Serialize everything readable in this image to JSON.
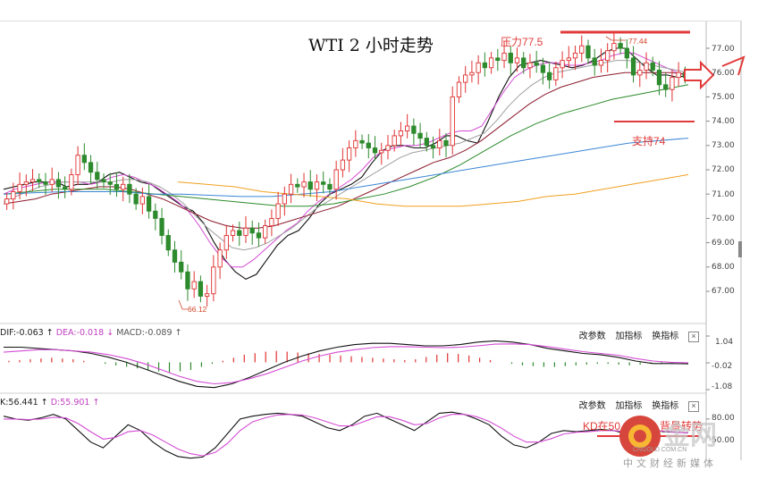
{
  "title": "WTI 2 小时走势",
  "colors": {
    "up": "#e03131",
    "down": "#2d8a2d",
    "ma_black": "#111111",
    "ma_magenta": "#d44bd4",
    "ma_gray": "#a0a0a0",
    "ma_maroon": "#8b1a2c",
    "ma_green": "#2a8a2a",
    "ma_blue": "#3b86d6",
    "ma_orange": "#f0a020",
    "annotation": "#e23a3a",
    "watermark": "#d7463c"
  },
  "annotations": {
    "resistance": "压力77.5",
    "support": "支持74",
    "high": "77.44",
    "low": "66.12",
    "kd_note": "KD在50",
    "kd_note_cut": "背景转势"
  },
  "macd": {
    "dif": "DIF:-0.063",
    "dea": "DEA:-0.018",
    "macd": "MACD:-0.089",
    "buttons": [
      "改参数",
      "加指标",
      "换指标"
    ],
    "close": "×"
  },
  "kd": {
    "k": "K:56.441",
    "d": "D:55.901",
    "buttons": [
      "改参数",
      "加指标",
      "换指标"
    ],
    "close": "×"
  },
  "watermark": {
    "logo_text": "金网",
    "url": "CNGOLD.COM.CN",
    "text": "中文财经新媒体"
  },
  "chart_data": {
    "type": "candlestick",
    "title": "WTI 2 小时走势",
    "ylim": [
      66.0,
      77.5
    ],
    "y_ticks": [
      "77.00",
      "76.00",
      "75.00",
      "74.00",
      "73.00",
      "72.00",
      "71.00",
      "70.00",
      "69.00",
      "68.00",
      "67.00"
    ],
    "levels": {
      "resistance": 77.5,
      "support": 74.0
    },
    "marked_high": 77.44,
    "marked_low": 66.12,
    "closes": [
      70.8,
      71.1,
      71.4,
      71.5,
      71.6,
      71.5,
      71.4,
      71.6,
      71.3,
      71.2,
      71.8,
      72.6,
      72.3,
      71.9,
      71.6,
      71.5,
      71.4,
      71.2,
      71.4,
      71.0,
      70.6,
      70.9,
      70.3,
      70.0,
      69.3,
      68.7,
      68.2,
      67.8,
      67.1,
      67.4,
      66.8,
      66.9,
      68.0,
      68.7,
      69.3,
      69.5,
      69.3,
      69.6,
      69.4,
      69.2,
      69.7,
      70.0,
      70.6,
      71.0,
      71.4,
      71.3,
      71.5,
      71.2,
      71.5,
      71.4,
      71.2,
      72.0,
      72.4,
      72.9,
      73.2,
      73.1,
      72.9,
      72.7,
      72.8,
      73.0,
      73.4,
      73.6,
      73.8,
      73.5,
      73.3,
      73.0,
      72.9,
      73.2,
      73.0,
      75.0,
      75.6,
      75.9,
      76.0,
      76.4,
      76.2,
      76.6,
      76.5,
      76.8,
      76.4,
      76.6,
      76.2,
      76.4,
      76.3,
      76.0,
      75.7,
      76.2,
      76.5,
      76.6,
      76.8,
      77.1,
      76.6,
      76.3,
      76.5,
      76.9,
      77.2,
      77.0,
      76.6,
      75.9,
      76.1,
      76.4,
      76.1,
      75.5,
      75.3,
      75.8,
      76.0,
      75.8
    ],
    "ma_series": [
      {
        "color": "ma_black",
        "values": [
          71.2,
          71.3,
          71.4,
          71.5,
          71.5,
          71.5,
          71.3,
          71.4,
          71.4,
          71.5,
          71.8,
          71.9,
          71.7,
          71.5,
          71.4,
          71.1,
          70.8,
          70.5,
          70.3,
          69.8,
          69.0,
          68.3,
          67.8,
          67.5,
          67.7,
          68.3,
          68.9,
          69.3,
          69.5,
          70.0,
          70.6,
          71.0,
          71.2,
          71.4,
          71.7,
          72.3,
          72.8,
          73.0,
          73.0,
          72.9,
          72.9,
          73.1,
          73.4,
          73.4,
          73.2,
          73.1,
          74.0,
          75.0,
          75.8,
          76.3,
          76.4,
          76.5,
          76.4,
          76.3,
          76.2,
          76.3,
          76.5,
          76.8,
          77.0,
          77.0,
          76.6,
          76.2,
          75.9,
          75.9,
          75.8,
          75.9
        ]
      },
      {
        "color": "ma_magenta",
        "values": [
          71.0,
          71.2,
          71.3,
          71.4,
          71.5,
          71.5,
          71.5,
          71.5,
          71.4,
          71.5,
          71.7,
          71.8,
          71.7,
          71.5,
          71.3,
          71.0,
          70.7,
          70.3,
          69.7,
          69.0,
          68.4,
          68.0,
          68.0,
          68.3,
          68.7,
          69.1,
          69.5,
          69.8,
          70.3,
          70.7,
          71.0,
          71.3,
          71.6,
          72.0,
          72.5,
          72.8,
          72.9,
          73.0,
          73.0,
          73.1,
          73.3,
          73.5,
          73.6,
          73.6,
          73.8,
          74.5,
          75.2,
          75.8,
          76.1,
          76.3,
          76.4,
          76.4,
          76.3,
          76.3,
          76.4,
          76.5,
          76.7,
          76.8,
          76.8,
          76.6,
          76.4,
          76.2,
          76.0,
          75.9
        ]
      },
      {
        "color": "ma_gray",
        "values": [
          70.7,
          70.9,
          71.1,
          71.3,
          71.4,
          71.5,
          71.5,
          71.5,
          71.5,
          71.5,
          71.6,
          71.6,
          71.5,
          71.3,
          71.0,
          70.6,
          70.1,
          69.6,
          69.2,
          68.8,
          68.7,
          68.8,
          69.0,
          69.3,
          69.6,
          70.0,
          70.4,
          70.7,
          71.0,
          71.3,
          71.6,
          71.9,
          72.2,
          72.5,
          72.7,
          72.8,
          72.9,
          73.0,
          73.1,
          73.3,
          73.5,
          74.0,
          74.6,
          75.1,
          75.5,
          75.8,
          76.0,
          76.1,
          76.2,
          76.3,
          76.4,
          76.5,
          76.5,
          76.4,
          76.3,
          76.2,
          76.1,
          76.0
        ]
      },
      {
        "color": "ma_maroon",
        "values": [
          70.6,
          70.7,
          70.8,
          71.0,
          71.1,
          71.2,
          71.3,
          71.3,
          71.2,
          71.0,
          70.8,
          70.5,
          70.2,
          69.9,
          69.7,
          69.6,
          69.6,
          69.7,
          69.9,
          70.1,
          70.3,
          70.5,
          70.8,
          71.1,
          71.4,
          71.7,
          72.0,
          72.3,
          72.5,
          72.8,
          73.2,
          73.7,
          74.2,
          74.7,
          75.1,
          75.4,
          75.6,
          75.8,
          75.9,
          76.0,
          76.0,
          76.0,
          76.0,
          75.9
        ]
      },
      {
        "color": "ma_green",
        "values": [
          71.0,
          71.1,
          71.2,
          71.2,
          71.2,
          71.1,
          71.0,
          70.9,
          70.8,
          70.7,
          70.6,
          70.5,
          70.5,
          70.6,
          70.8,
          71.0,
          71.3,
          71.7,
          72.2,
          72.8,
          73.4,
          73.9,
          74.3,
          74.6,
          74.9,
          75.1,
          75.3,
          75.5
        ]
      },
      {
        "color": "ma_blue",
        "values": [
          71.0,
          71.05,
          71.1,
          71.1,
          71.1,
          71.0,
          71.0,
          70.95,
          70.9,
          70.9,
          71.0,
          71.1,
          71.3,
          71.5,
          71.7,
          71.9,
          72.1,
          72.3,
          72.5,
          72.7,
          72.9,
          73.1,
          73.2,
          73.3
        ]
      },
      {
        "color": "ma_orange",
        "values": [
          71.5,
          71.4,
          71.3,
          71.1,
          71.0,
          70.9,
          70.8,
          70.6,
          70.5,
          70.5,
          70.5,
          70.6,
          70.7,
          70.9,
          71.0,
          71.2,
          71.4,
          71.6,
          71.8
        ]
      }
    ],
    "macd_ticks": [
      "1.04",
      "-0.02",
      "-1.08"
    ],
    "macd_ylim": [
      -1.08,
      1.04
    ],
    "macd_hist": [
      0.1,
      0.15,
      0.2,
      0.25,
      0.3,
      0.25,
      0.2,
      0.1,
      0.0,
      -0.1,
      -0.2,
      -0.3,
      -0.4,
      -0.5,
      -0.6,
      -0.65,
      -0.6,
      -0.5,
      -0.3,
      -0.1,
      0.1,
      0.3,
      0.5,
      0.6,
      0.7,
      0.75,
      0.7,
      0.65,
      0.6,
      0.55,
      0.5,
      0.45,
      0.4,
      0.35,
      0.3,
      0.25,
      0.2,
      0.15,
      0.2,
      0.35,
      0.5,
      0.6,
      0.55,
      0.45,
      0.3,
      0.15,
      0.0,
      -0.1,
      -0.2,
      -0.25,
      -0.3,
      -0.3,
      -0.25,
      -0.2,
      -0.15,
      -0.1,
      -0.1,
      -0.15,
      -0.2,
      -0.15,
      -0.1,
      -0.1,
      -0.1,
      -0.09
    ],
    "macd_dif": [
      0.6,
      0.6,
      0.55,
      0.5,
      0.45,
      0.35,
      0.2,
      0.0,
      -0.25,
      -0.5,
      -0.75,
      -0.95,
      -1.0,
      -0.85,
      -0.6,
      -0.3,
      0.0,
      0.25,
      0.45,
      0.6,
      0.7,
      0.75,
      0.75,
      0.7,
      0.65,
      0.65,
      0.7,
      0.8,
      0.85,
      0.8,
      0.7,
      0.55,
      0.45,
      0.35,
      0.3,
      0.2,
      0.05,
      -0.05,
      -0.05,
      -0.06
    ],
    "macd_dea": [
      0.4,
      0.45,
      0.5,
      0.5,
      0.45,
      0.4,
      0.3,
      0.15,
      -0.05,
      -0.3,
      -0.55,
      -0.75,
      -0.85,
      -0.8,
      -0.65,
      -0.45,
      -0.2,
      0.05,
      0.25,
      0.4,
      0.5,
      0.58,
      0.62,
      0.62,
      0.6,
      0.58,
      0.6,
      0.65,
      0.72,
      0.73,
      0.7,
      0.62,
      0.52,
      0.42,
      0.35,
      0.28,
      0.15,
      0.05,
      0.0,
      -0.02
    ],
    "kd_ticks": [
      "80.00",
      "50.00"
    ],
    "kd_ylim": [
      10,
      100
    ],
    "kd_k": [
      85,
      80,
      78,
      82,
      88,
      80,
      60,
      40,
      30,
      50,
      70,
      60,
      40,
      25,
      15,
      12,
      14,
      30,
      55,
      80,
      85,
      88,
      90,
      88,
      85,
      75,
      65,
      60,
      70,
      85,
      90,
      80,
      70,
      60,
      75,
      90,
      92,
      88,
      80,
      70,
      50,
      35,
      30,
      40,
      55,
      60,
      58,
      60,
      62,
      60,
      55,
      60,
      62,
      58,
      57,
      56
    ],
    "kd_d": [
      80,
      80,
      79,
      80,
      83,
      82,
      72,
      58,
      45,
      48,
      58,
      60,
      52,
      40,
      28,
      20,
      16,
      22,
      38,
      60,
      75,
      82,
      87,
      88,
      87,
      82,
      75,
      68,
      68,
      76,
      84,
      84,
      78,
      70,
      72,
      82,
      88,
      88,
      84,
      76,
      64,
      50,
      40,
      40,
      46,
      54,
      57,
      58,
      60,
      60,
      58,
      59,
      60,
      59,
      57,
      56
    ]
  }
}
